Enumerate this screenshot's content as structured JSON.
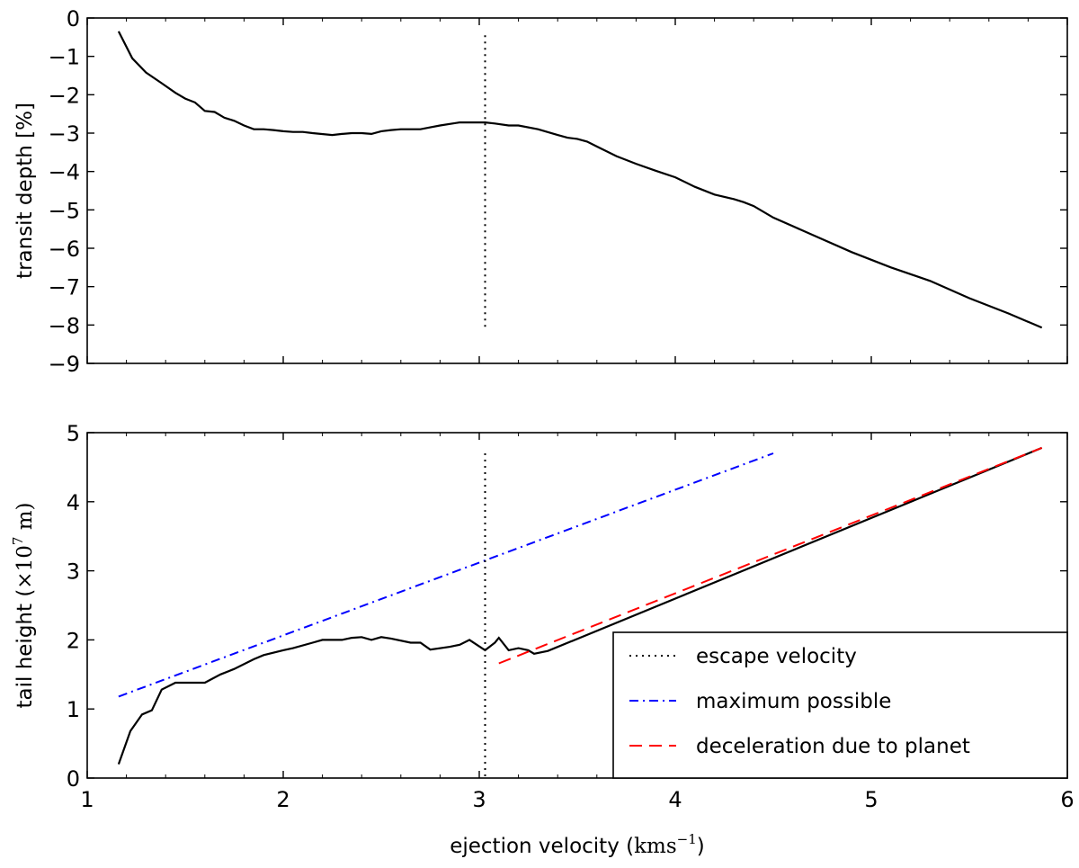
{
  "chart_data": [
    {
      "type": "line",
      "id": "top",
      "xlim": [
        1,
        6
      ],
      "ylim": [
        -9,
        0
      ],
      "xticks": [
        1,
        2,
        3,
        4,
        5,
        6
      ],
      "yticks": [
        0,
        -1,
        -2,
        -3,
        -4,
        -5,
        -6,
        -7,
        -8,
        -9
      ],
      "xticklabels_visible": false,
      "ylabel": "transit depth [%]",
      "series": [
        {
          "name": "transit depth",
          "style": "solid",
          "color": "#000000",
          "points": [
            [
              1.16,
              -0.35
            ],
            [
              1.23,
              -1.05
            ],
            [
              1.3,
              -1.42
            ],
            [
              1.38,
              -1.7
            ],
            [
              1.45,
              -1.95
            ],
            [
              1.5,
              -2.1
            ],
            [
              1.55,
              -2.2
            ],
            [
              1.6,
              -2.42
            ],
            [
              1.65,
              -2.45
            ],
            [
              1.7,
              -2.6
            ],
            [
              1.75,
              -2.68
            ],
            [
              1.8,
              -2.8
            ],
            [
              1.85,
              -2.9
            ],
            [
              1.9,
              -2.9
            ],
            [
              1.95,
              -2.92
            ],
            [
              2.0,
              -2.95
            ],
            [
              2.05,
              -2.97
            ],
            [
              2.1,
              -2.97
            ],
            [
              2.15,
              -3.0
            ],
            [
              2.25,
              -3.05
            ],
            [
              2.3,
              -3.02
            ],
            [
              2.35,
              -3.0
            ],
            [
              2.4,
              -3.0
            ],
            [
              2.45,
              -3.02
            ],
            [
              2.5,
              -2.95
            ],
            [
              2.55,
              -2.92
            ],
            [
              2.6,
              -2.9
            ],
            [
              2.7,
              -2.9
            ],
            [
              2.75,
              -2.85
            ],
            [
              2.8,
              -2.8
            ],
            [
              2.9,
              -2.72
            ],
            [
              2.95,
              -2.72
            ],
            [
              3.03,
              -2.72
            ],
            [
              3.08,
              -2.75
            ],
            [
              3.15,
              -2.8
            ],
            [
              3.2,
              -2.8
            ],
            [
              3.3,
              -2.9
            ],
            [
              3.4,
              -3.05
            ],
            [
              3.45,
              -3.12
            ],
            [
              3.5,
              -3.15
            ],
            [
              3.55,
              -3.22
            ],
            [
              3.6,
              -3.35
            ],
            [
              3.7,
              -3.6
            ],
            [
              3.75,
              -3.7
            ],
            [
              3.8,
              -3.8
            ],
            [
              3.9,
              -3.98
            ],
            [
              4.0,
              -4.15
            ],
            [
              4.1,
              -4.4
            ],
            [
              4.2,
              -4.6
            ],
            [
              4.3,
              -4.72
            ],
            [
              4.35,
              -4.8
            ],
            [
              4.4,
              -4.9
            ],
            [
              4.5,
              -5.2
            ],
            [
              4.7,
              -5.65
            ],
            [
              4.9,
              -6.1
            ],
            [
              5.1,
              -6.5
            ],
            [
              5.3,
              -6.85
            ],
            [
              5.5,
              -7.3
            ],
            [
              5.7,
              -7.7
            ],
            [
              5.87,
              -8.07
            ]
          ]
        },
        {
          "name": "escape velocity",
          "style": "dotted",
          "color": "#000000",
          "points": [
            [
              3.03,
              -0.45
            ],
            [
              3.03,
              -8.12
            ]
          ]
        }
      ]
    },
    {
      "type": "line",
      "id": "bottom",
      "xlim": [
        1,
        6
      ],
      "ylim": [
        0,
        5
      ],
      "xticks": [
        1,
        2,
        3,
        4,
        5,
        6
      ],
      "yticks": [
        0,
        1,
        2,
        3,
        4,
        5
      ],
      "xlabel": "ejection velocity (",
      "xlabel_unit": "kms",
      "xlabel_sup": "−1",
      "xlabel_close": ")",
      "ylabel": "tail height (",
      "ylabel_unit": "×10",
      "ylabel_sup": "7",
      "ylabel_unit2": " m)",
      "legend_position": "lower-right",
      "series": [
        {
          "name": "tail height",
          "style": "solid",
          "color": "#000000",
          "points": [
            [
              1.16,
              0.2
            ],
            [
              1.22,
              0.68
            ],
            [
              1.28,
              0.92
            ],
            [
              1.33,
              0.98
            ],
            [
              1.38,
              1.28
            ],
            [
              1.45,
              1.38
            ],
            [
              1.55,
              1.38
            ],
            [
              1.6,
              1.38
            ],
            [
              1.68,
              1.5
            ],
            [
              1.75,
              1.58
            ],
            [
              1.85,
              1.72
            ],
            [
              1.9,
              1.78
            ],
            [
              2.0,
              1.85
            ],
            [
              2.05,
              1.88
            ],
            [
              2.15,
              1.96
            ],
            [
              2.2,
              2.0
            ],
            [
              2.3,
              2.0
            ],
            [
              2.35,
              2.03
            ],
            [
              2.4,
              2.04
            ],
            [
              2.45,
              2.0
            ],
            [
              2.5,
              2.04
            ],
            [
              2.55,
              2.02
            ],
            [
              2.65,
              1.96
            ],
            [
              2.7,
              1.96
            ],
            [
              2.75,
              1.86
            ],
            [
              2.85,
              1.9
            ],
            [
              2.9,
              1.93
            ],
            [
              2.95,
              2.0
            ],
            [
              3.03,
              1.85
            ],
            [
              3.08,
              1.96
            ],
            [
              3.1,
              2.03
            ],
            [
              3.15,
              1.85
            ],
            [
              3.2,
              1.88
            ],
            [
              3.25,
              1.85
            ],
            [
              3.28,
              1.8
            ],
            [
              3.35,
              1.84
            ],
            [
              5.87,
              4.78
            ]
          ]
        },
        {
          "name": "maximum possible",
          "style": "dashdot",
          "color": "#0000ff",
          "points": [
            [
              1.16,
              1.18
            ],
            [
              4.5,
              4.7
            ]
          ]
        },
        {
          "name": "deceleration due to planet",
          "style": "dashed",
          "color": "#ff0000",
          "points": [
            [
              3.1,
              1.66
            ],
            [
              5.87,
              4.78
            ]
          ]
        },
        {
          "name": "escape velocity",
          "style": "dotted",
          "color": "#000000",
          "points": [
            [
              3.03,
              4.7
            ],
            [
              3.03,
              0.02
            ]
          ]
        }
      ],
      "legend": [
        {
          "label": "escape velocity",
          "style": "dotted",
          "color": "#000000"
        },
        {
          "label": "maximum possible",
          "style": "dashdot",
          "color": "#0000ff"
        },
        {
          "label": "deceleration due to planet",
          "style": "dashed",
          "color": "#ff0000"
        }
      ]
    }
  ]
}
